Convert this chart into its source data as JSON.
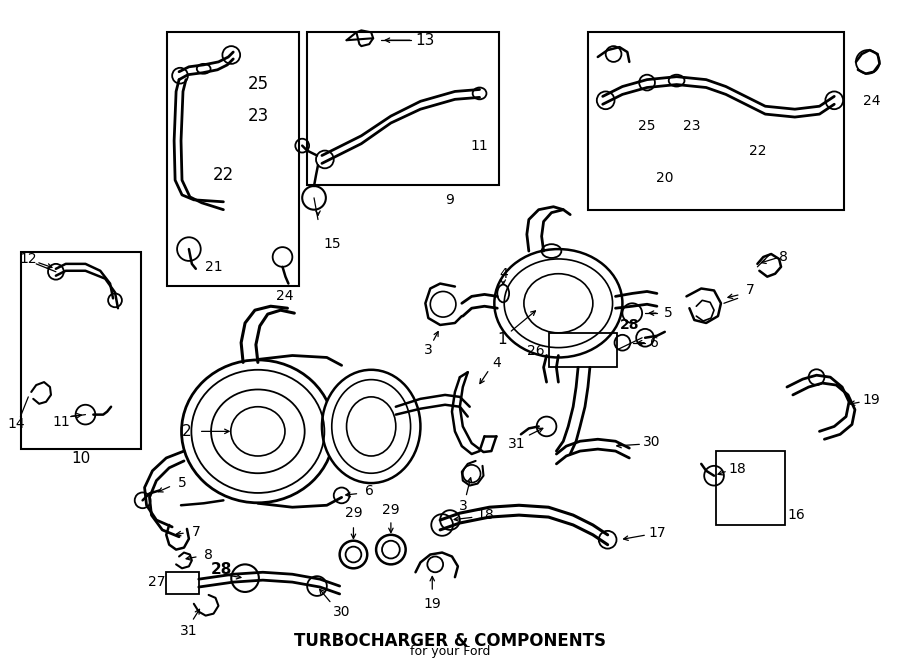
{
  "title": "TURBOCHARGER & COMPONENTS",
  "subtitle": "for your Ford",
  "bg_color": "#ffffff",
  "line_color": "#000000",
  "fig_width": 9.0,
  "fig_height": 6.61,
  "dpi": 100
}
